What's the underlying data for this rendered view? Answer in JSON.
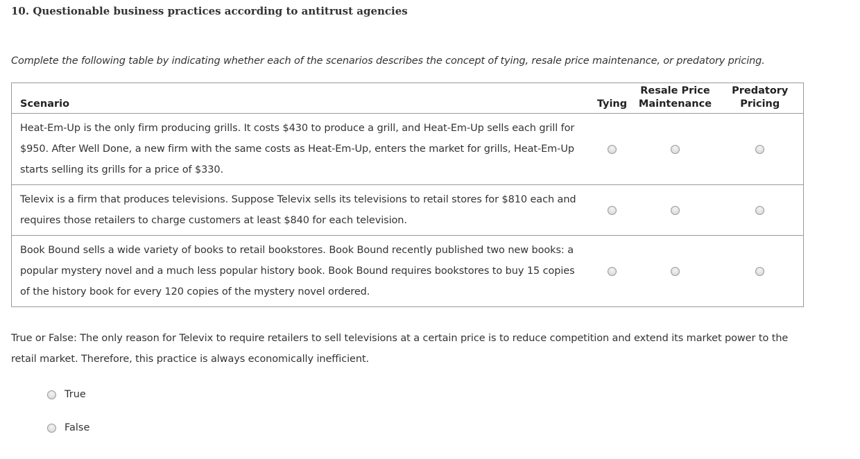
{
  "title": "10. Questionable business practices according to antitrust agencies",
  "instruction": "Complete the following table by indicating whether each of the scenarios describes the concept of tying, resale price maintenance, or predatory pricing.",
  "table": {
    "headers": [
      "Scenario",
      "Tying",
      "Resale Price Maintenance",
      "Predatory Pricing"
    ],
    "rows": [
      {
        "scenario": "Heat-Em-Up is the only firm producing grills. It costs $430 to produce a grill, and Heat-Em-Up sells each grill for $950. After Well Done, a new firm with the same costs as Heat-Em-Up, enters the market for grills, Heat-Em-Up starts selling its grills for a price of $330.",
        "selected": null
      },
      {
        "scenario": "Televix is a firm that produces televisions. Suppose Televix sells its televisions to retail stores for $810 each and requires those retailers to charge customers at least $840 for each television.",
        "selected": null
      },
      {
        "scenario": "Book Bound sells a wide variety of books to retail bookstores. Book Bound recently published two new books: a popular mystery novel and a much less popular history book. Book Bound requires bookstores to buy 15 copies of the history book for every 120 copies of the mystery novel ordered.",
        "selected": null
      }
    ]
  },
  "true_false": {
    "question": "True or False: The only reason for Televix to require retailers to sell televisions at a certain price is to reduce competition and extend its market power to the retail market. Therefore, this practice is always economically inefficient.",
    "options": [
      "True",
      "False"
    ],
    "selected": null
  }
}
